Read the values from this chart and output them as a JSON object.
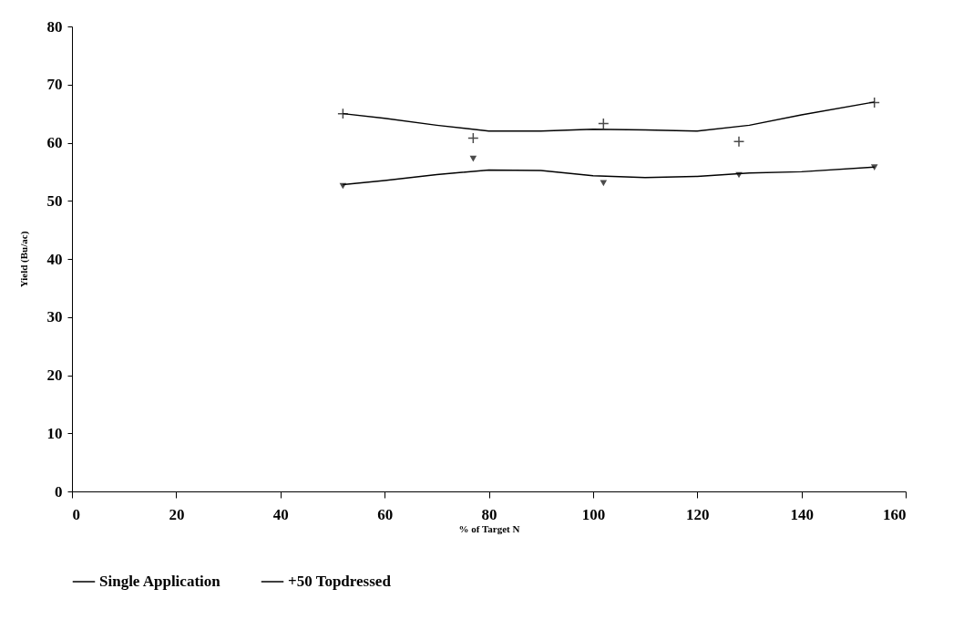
{
  "chart_data": {
    "type": "line",
    "xlabel": "% of Target N",
    "ylabel": "Yield (Bu/ac)",
    "xlim": [
      0,
      160
    ],
    "xticks": [
      0,
      20,
      40,
      60,
      80,
      100,
      120,
      140,
      160
    ],
    "ylim": [
      0,
      80
    ],
    "yticks": [
      0,
      10,
      20,
      30,
      40,
      50,
      60,
      70,
      80
    ],
    "grid": false,
    "legend": "bottom",
    "series": [
      {
        "name": "Single Application",
        "color": "#000000",
        "marker": "none",
        "x": [
          52,
          60,
          70,
          80,
          90,
          100,
          110,
          120,
          130,
          140,
          154
        ],
        "values": [
          52.8,
          53.5,
          54.5,
          55.3,
          55.2,
          54.3,
          54,
          54.2,
          54.8,
          55,
          55.8
        ]
      },
      {
        "name": "+50 Topdressed",
        "color": "#000000",
        "marker": "none",
        "x": [
          52,
          60,
          70,
          80,
          90,
          100,
          110,
          120,
          130,
          140,
          154
        ],
        "values": [
          65,
          64.2,
          63,
          62,
          62,
          62.3,
          62.2,
          62,
          63,
          64.8,
          67
        ]
      },
      {
        "type": "scatter",
        "color": "#000000",
        "marker": "triangle",
        "x": [
          52,
          77,
          102,
          128,
          154
        ],
        "values": [
          52.6,
          57.3,
          53.1,
          54.5,
          55.8
        ]
      },
      {
        "type": "scatter",
        "color": "#000000",
        "marker": "cross",
        "x": [
          52,
          77,
          102,
          128,
          154
        ],
        "values": [
          65,
          60.8,
          63.3,
          60.2,
          66.9
        ]
      }
    ]
  }
}
